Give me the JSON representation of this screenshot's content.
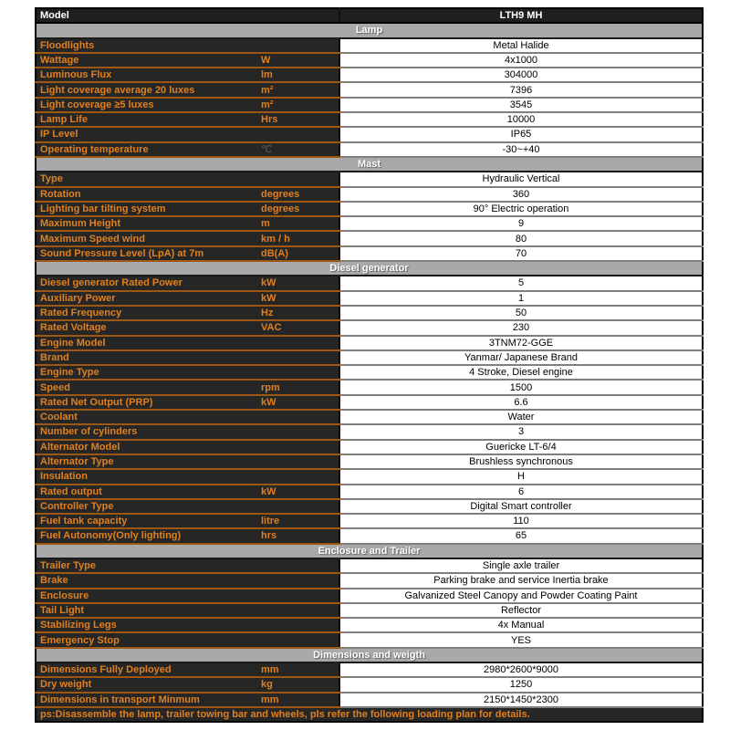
{
  "colors": {
    "accent_orange": "#E0801F",
    "dark_cell_bg": "#262626",
    "section_bar_gray": "#A9A9A9",
    "dark_row_border": "#9C5715",
    "white_row_border": "#7F7F7F"
  },
  "model_row": {
    "label": "Model",
    "value": "LTH9 MH"
  },
  "sections": [
    {
      "title": "Lamp",
      "rows": [
        {
          "label": "Floodlights",
          "unit": "",
          "value": "Metal Halide"
        },
        {
          "label": "Wattage",
          "unit": "W",
          "value": "4x1000"
        },
        {
          "label": "Luminous Flux",
          "unit": "lm",
          "value": "304000"
        },
        {
          "label": "Light coverage average 20 luxes",
          "unit": "m²",
          "value": "7396"
        },
        {
          "label": "Light coverage ≥5 luxes",
          "unit": "m²",
          "value": "3545"
        },
        {
          "label": "Lamp Life",
          "unit": "Hrs",
          "value": "10000"
        },
        {
          "label": "IP Level",
          "unit": "",
          "value": "IP65"
        },
        {
          "label": "Operating temperature",
          "unit": "℃",
          "unit_muted": true,
          "value": "-30~+40"
        }
      ]
    },
    {
      "title": "Mast",
      "rows": [
        {
          "label": "Type",
          "unit": "",
          "value": "Hydraulic Vertical"
        },
        {
          "label": "Rotation",
          "unit": "degrees",
          "value": "360"
        },
        {
          "label": "Lighting bar tilting system",
          "unit": "degrees",
          "value": "90° Electric operation"
        },
        {
          "label": "Maximum Height",
          "unit": "m",
          "value": "9"
        },
        {
          "label": "Maximum Speed wind",
          "unit": "km / h",
          "value": "80"
        },
        {
          "label": "Sound Pressure Level (LpA) at 7m",
          "unit": "dB(A)",
          "value": "70"
        }
      ]
    },
    {
      "title": "Diesel generator",
      "rows": [
        {
          "label": "Diesel generator Rated Power",
          "unit": "kW",
          "value": "5"
        },
        {
          "label": "Auxiliary Power",
          "unit": "kW",
          "value": "1"
        },
        {
          "label": "Rated Frequency",
          "unit": "Hz",
          "value": "50"
        },
        {
          "label": "Rated Voltage",
          "unit": "VAC",
          "value": "230"
        },
        {
          "label": "Engine Model",
          "unit": "",
          "value": "3TNM72-GGE"
        },
        {
          "label": "Brand",
          "unit": "",
          "value": "Yanmar/ Japanese Brand"
        },
        {
          "label": "Engine Type",
          "unit": "",
          "value": "4 Stroke, Diesel engine"
        },
        {
          "label": "Speed",
          "unit": "rpm",
          "value": "1500"
        },
        {
          "label": "Rated Net Output (PRP)",
          "unit": "kW",
          "value": "6.6"
        },
        {
          "label": "Coolant",
          "unit": "",
          "value": "Water"
        },
        {
          "label": "Number of cylinders",
          "unit": "",
          "value": "3"
        },
        {
          "label": "Alternator Model",
          "unit": "",
          "value": "Guericke  LT-6/4"
        },
        {
          "label": "Alternator Type",
          "unit": "",
          "value": "Brushless synchronous"
        },
        {
          "label": "Insulation",
          "unit": "",
          "value": "H"
        },
        {
          "label": "Rated output",
          "unit": "kW",
          "value": "6"
        },
        {
          "label": "Controller Type",
          "unit": "",
          "value": "Digital Smart controller"
        },
        {
          "label": "Fuel tank capacity",
          "unit": "litre",
          "value": "110"
        },
        {
          "label": "Fuel Autonomy(Only lighting)",
          "unit": "hrs",
          "value": "65"
        }
      ]
    },
    {
      "title": "Enclosure and Trailer",
      "rows": [
        {
          "label": "Trailer Type",
          "unit": "",
          "value": "Single axle trailer"
        },
        {
          "label": "Brake",
          "unit": "",
          "value": "Parking brake and service Inertia brake"
        },
        {
          "label": "Enclosure",
          "unit": "",
          "value": "Galvanized Steel Canopy and Powder Coating Paint"
        },
        {
          "label": "Tail Light",
          "unit": "",
          "value": "Reflector"
        },
        {
          "label": "Stabilizing Legs",
          "unit": "",
          "value": "4x Manual"
        },
        {
          "label": "Emergency Stop",
          "unit": "",
          "value": "YES"
        }
      ]
    },
    {
      "title": "Dimensions and weigth",
      "rows": [
        {
          "label": "Dimensions Fully Deployed",
          "unit": "mm",
          "value": "2980*2600*9000"
        },
        {
          "label": "Dry weight",
          "unit": "kg",
          "value": "1250"
        },
        {
          "label": "Dimensions in transport Minmum",
          "unit": "mm",
          "value": "2150*1450*2300"
        }
      ]
    }
  ],
  "footer_note": "ps:Disassemble the lamp, trailer towing bar and wheels, pls refer the following loading plan for details."
}
